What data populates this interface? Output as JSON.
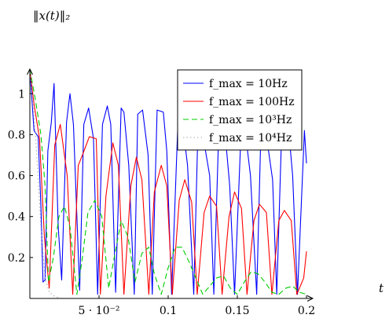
{
  "chart_data": {
    "type": "line",
    "ylabel": "‖x(t)‖₂",
    "xlabel": "t",
    "xlim": [
      0,
      0.2
    ],
    "ylim": [
      0,
      1.12
    ],
    "x_ticks": [
      {
        "value": 0.05,
        "label": "5 · 10⁻²"
      },
      {
        "value": 0.1,
        "label": "0.1"
      },
      {
        "value": 0.15,
        "label": "0.15"
      },
      {
        "value": 0.2,
        "label": "0.2"
      }
    ],
    "y_ticks": [
      {
        "value": 0.2,
        "label": "0.2"
      },
      {
        "value": 0.4,
        "label": "0.4"
      },
      {
        "value": 0.6,
        "label": "0.6"
      },
      {
        "value": 0.8,
        "label": "0.8"
      },
      {
        "value": 1.0,
        "label": "1"
      }
    ],
    "grid": false,
    "legend_position": "top-right",
    "series": [
      {
        "name": "f_max = 10Hz",
        "color": "#0000ff",
        "dash": "solid",
        "x": [
          0,
          0.003,
          0.006,
          0.008,
          0.0095,
          0.011,
          0.013,
          0.0155,
          0.0175,
          0.0205,
          0.023,
          0.0265,
          0.029,
          0.0315,
          0.036,
          0.039,
          0.0425,
          0.046,
          0.049,
          0.0525,
          0.056,
          0.0585,
          0.062,
          0.066,
          0.068,
          0.0715,
          0.0755,
          0.078,
          0.0815,
          0.0855,
          0.0885,
          0.092,
          0.0965,
          0.099,
          0.1025,
          0.107,
          0.1105,
          0.114,
          0.1185,
          0.1215,
          0.125,
          0.13,
          0.133,
          0.1365,
          0.1415,
          0.1445,
          0.148,
          0.1525,
          0.156,
          0.1595,
          0.164,
          0.167,
          0.1705,
          0.1755,
          0.1785,
          0.182,
          0.187,
          0.19,
          0.1935,
          0.1985,
          0.2
        ],
        "y": [
          1.12,
          0.82,
          0.79,
          0.45,
          0.08,
          0.09,
          0.72,
          0.86,
          1.05,
          0.35,
          0.09,
          0.86,
          1.0,
          0.85,
          0.04,
          0.85,
          0.93,
          0.78,
          0.02,
          0.85,
          0.94,
          0.85,
          0.03,
          0.93,
          0.91,
          0.65,
          0.02,
          0.9,
          0.92,
          0.7,
          0.02,
          0.92,
          0.91,
          0.72,
          0.02,
          0.85,
          0.85,
          0.65,
          0.02,
          0.82,
          0.8,
          0.6,
          0.02,
          0.8,
          0.78,
          0.55,
          0.02,
          0.78,
          0.8,
          0.6,
          0.02,
          0.8,
          0.82,
          0.58,
          0.02,
          0.8,
          0.83,
          0.6,
          0.02,
          0.82,
          0.66
        ]
      },
      {
        "name": "f_max = 100Hz",
        "color": "#ff0000",
        "dash": "solid",
        "x": [
          0,
          0.003,
          0.007,
          0.0105,
          0.014,
          0.018,
          0.022,
          0.027,
          0.031,
          0.035,
          0.038,
          0.043,
          0.048,
          0.051,
          0.055,
          0.06,
          0.064,
          0.068,
          0.073,
          0.077,
          0.081,
          0.086,
          0.09,
          0.095,
          0.099,
          0.103,
          0.108,
          0.112,
          0.117,
          0.121,
          0.126,
          0.13,
          0.135,
          0.139,
          0.144,
          0.148,
          0.153,
          0.157,
          0.162,
          0.166,
          0.171,
          0.175,
          0.18,
          0.184,
          0.189,
          0.193,
          0.198,
          0.2
        ],
        "y": [
          1.12,
          0.95,
          0.78,
          0.3,
          0.05,
          0.75,
          0.85,
          0.6,
          0.02,
          0.65,
          0.7,
          0.79,
          0.78,
          0.02,
          0.5,
          0.76,
          0.65,
          0.02,
          0.55,
          0.69,
          0.58,
          0.02,
          0.52,
          0.65,
          0.55,
          0.02,
          0.48,
          0.58,
          0.47,
          0.02,
          0.42,
          0.5,
          0.45,
          0.02,
          0.4,
          0.52,
          0.44,
          0.02,
          0.38,
          0.46,
          0.42,
          0.02,
          0.38,
          0.43,
          0.38,
          0.02,
          0.1,
          0.23
        ]
      },
      {
        "name": "f_max = 10³Hz",
        "color": "#00cc00",
        "dash": "dashed",
        "x": [
          0,
          0.004,
          0.008,
          0.011,
          0.0135,
          0.017,
          0.021,
          0.025,
          0.029,
          0.034,
          0.038,
          0.042,
          0.047,
          0.052,
          0.057,
          0.061,
          0.066,
          0.071,
          0.076,
          0.081,
          0.086,
          0.09,
          0.095,
          0.1,
          0.105,
          0.11,
          0.115,
          0.12,
          0.125,
          0.13,
          0.135,
          0.14,
          0.145,
          0.15,
          0.155,
          0.16,
          0.165,
          0.17,
          0.175,
          0.18,
          0.185,
          0.19,
          0.195,
          0.2
        ],
        "y": [
          1.12,
          0.97,
          0.8,
          0.55,
          0.08,
          0.2,
          0.4,
          0.45,
          0.35,
          0.02,
          0.2,
          0.42,
          0.48,
          0.4,
          0.05,
          0.2,
          0.38,
          0.3,
          0.08,
          0.22,
          0.25,
          0.12,
          0.02,
          0.15,
          0.25,
          0.25,
          0.18,
          0.1,
          0.02,
          0.06,
          0.1,
          0.11,
          0.05,
          0.02,
          0.08,
          0.13,
          0.12,
          0.08,
          0.03,
          0.02,
          0.05,
          0.06,
          0.03,
          0.02
        ]
      },
      {
        "name": "f_max = 10⁴Hz",
        "color": "#aaaaaa",
        "dash": "dotted",
        "x": [
          0,
          0.0025,
          0.005,
          0.008,
          0.011,
          0.014,
          0.018,
          0.022
        ],
        "y": [
          1.12,
          0.95,
          0.7,
          0.35,
          0.1,
          0.03,
          0.01,
          0.0
        ]
      }
    ]
  }
}
